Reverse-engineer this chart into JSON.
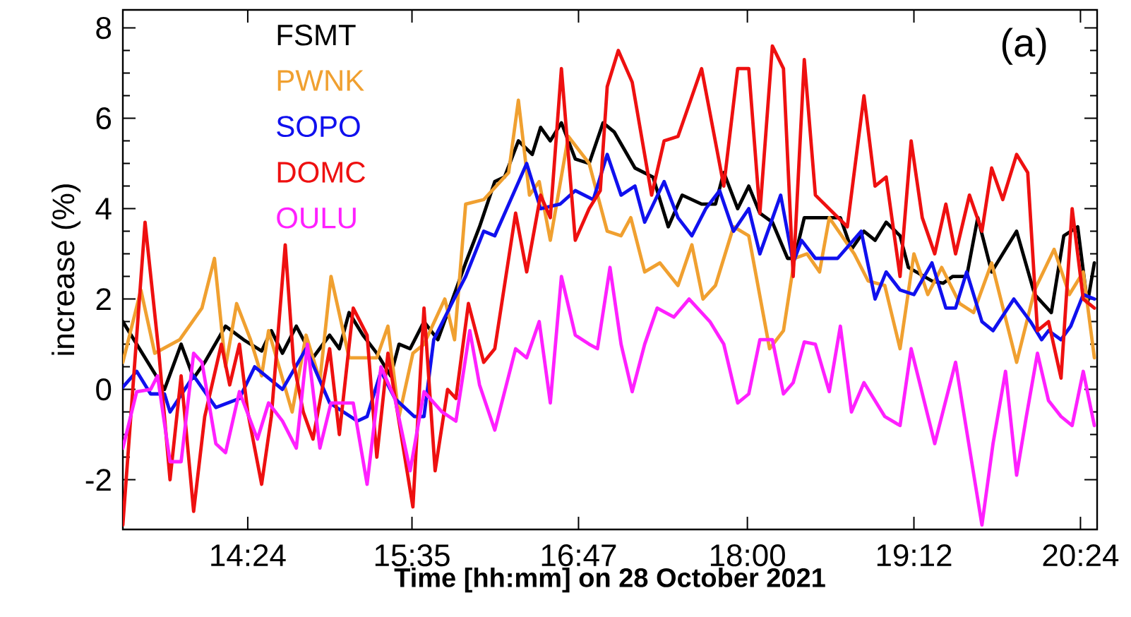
{
  "chart_data": {
    "type": "line",
    "xlabel": "Time [hh:mm] on 28 October 2021",
    "ylabel": "increase (%)",
    "annotations": [
      "(a)"
    ],
    "xlim": [
      13.5,
      20.52
    ],
    "ylim": [
      -3.1,
      8.4
    ],
    "xticks": [
      {
        "value": 14.4,
        "label": "14:24"
      },
      {
        "value": 15.5833,
        "label": "15:35"
      },
      {
        "value": 16.7833,
        "label": "16:47"
      },
      {
        "value": 18.0,
        "label": "18:00"
      },
      {
        "value": 19.2,
        "label": "19:12"
      },
      {
        "value": 20.4,
        "label": "20:24"
      }
    ],
    "yticks": [
      -2,
      0,
      2,
      4,
      6,
      8
    ],
    "grid": false,
    "legend": "top left",
    "marker": "none",
    "line_style": "solid",
    "series": [
      {
        "name": "FSMT",
        "color": "#000000",
        "x": [
          13.5,
          13.8,
          13.92,
          14.01,
          14.09,
          14.24,
          14.37,
          14.5,
          14.57,
          14.65,
          14.75,
          14.87,
          14.99,
          15.06,
          15.13,
          15.23,
          15.33,
          15.43,
          15.49,
          15.57,
          15.67,
          15.77,
          15.97,
          16.07,
          16.18,
          16.25,
          16.35,
          16.45,
          16.51,
          16.58,
          16.66,
          16.76,
          16.86,
          16.96,
          17.04,
          17.19,
          17.32,
          17.43,
          17.53,
          17.67,
          17.77,
          17.83,
          17.93,
          18.01,
          18.09,
          18.18,
          18.29,
          18.34,
          18.41,
          18.67,
          18.75,
          18.84,
          18.92,
          19.0,
          19.1,
          19.16,
          19.33,
          19.41,
          19.48,
          19.58,
          19.66,
          19.76,
          19.84,
          19.94,
          20.07,
          20.19,
          20.28,
          20.38,
          20.45,
          20.5
        ],
        "values": [
          1.5,
          0.0,
          1.0,
          0.25,
          0.6,
          1.4,
          1.1,
          0.85,
          1.3,
          0.8,
          1.4,
          0.7,
          1.2,
          0.9,
          1.7,
          1.2,
          0.8,
          0.3,
          1.0,
          0.9,
          1.5,
          1.1,
          2.8,
          3.6,
          4.6,
          4.7,
          5.5,
          5.2,
          5.8,
          5.5,
          5.9,
          5.1,
          5.0,
          5.9,
          5.7,
          4.9,
          4.7,
          3.6,
          4.3,
          4.1,
          4.1,
          4.8,
          4.0,
          4.5,
          3.9,
          3.7,
          2.9,
          2.9,
          3.8,
          3.8,
          3.1,
          3.5,
          3.3,
          3.7,
          3.4,
          2.7,
          2.4,
          2.35,
          2.5,
          2.5,
          3.8,
          2.6,
          3.0,
          3.5,
          2.1,
          1.7,
          3.4,
          3.6,
          1.9,
          2.8
        ]
      },
      {
        "name": "PWNK",
        "color": "#f0a030",
        "x": [
          13.5,
          13.63,
          13.73,
          13.91,
          14.07,
          14.16,
          14.24,
          14.32,
          14.42,
          14.5,
          14.55,
          14.72,
          14.82,
          14.92,
          15.0,
          15.13,
          15.23,
          15.33,
          15.41,
          15.49,
          15.59,
          15.67,
          15.82,
          15.89,
          15.97,
          16.1,
          16.28,
          16.35,
          16.43,
          16.5,
          16.58,
          16.71,
          16.86,
          16.99,
          17.09,
          17.16,
          17.26,
          17.37,
          17.5,
          17.6,
          17.68,
          17.77,
          17.9,
          18.01,
          18.16,
          18.26,
          18.34,
          18.43,
          18.52,
          18.59,
          18.77,
          18.87,
          18.99,
          19.1,
          19.2,
          19.3,
          19.4,
          19.53,
          19.63,
          19.76,
          19.94,
          20.07,
          20.21,
          20.32,
          20.42,
          20.5
        ],
        "values": [
          0.6,
          2.2,
          0.8,
          1.1,
          1.8,
          2.9,
          0.5,
          1.9,
          1.1,
          0.3,
          1.3,
          -0.5,
          1.2,
          0.2,
          2.5,
          0.7,
          0.7,
          0.7,
          1.4,
          -0.6,
          0.8,
          1.0,
          2.0,
          1.1,
          4.1,
          4.2,
          4.8,
          6.4,
          4.3,
          4.6,
          3.3,
          5.6,
          5.0,
          3.5,
          3.4,
          3.8,
          2.6,
          2.8,
          2.3,
          3.2,
          2.0,
          2.3,
          3.6,
          3.4,
          0.9,
          1.3,
          2.9,
          3.0,
          2.6,
          3.8,
          3.0,
          2.4,
          2.3,
          0.9,
          3.0,
          2.1,
          2.7,
          1.9,
          1.7,
          2.8,
          0.6,
          2.2,
          3.1,
          2.1,
          2.6,
          0.7
        ]
      },
      {
        "name": "SOPO",
        "color": "#1010ee",
        "x": [
          13.5,
          13.6,
          13.7,
          13.8,
          13.84,
          14.01,
          14.17,
          14.34,
          14.45,
          14.65,
          14.82,
          14.99,
          15.19,
          15.26,
          15.36,
          15.46,
          15.6,
          15.67,
          15.74,
          15.87,
          15.97,
          16.1,
          16.18,
          16.41,
          16.51,
          16.65,
          16.76,
          16.89,
          16.99,
          17.09,
          17.19,
          17.26,
          17.4,
          17.5,
          17.6,
          17.7,
          17.8,
          17.9,
          18.01,
          18.09,
          18.24,
          18.33,
          18.39,
          18.49,
          18.65,
          18.82,
          18.92,
          19.0,
          19.1,
          19.2,
          19.33,
          19.43,
          19.5,
          19.58,
          19.69,
          19.77,
          19.92,
          20.04,
          20.12,
          20.17,
          20.26,
          20.33,
          20.42,
          20.5
        ],
        "values": [
          0.05,
          0.4,
          -0.1,
          -0.1,
          -0.5,
          0.3,
          -0.4,
          -0.2,
          0.5,
          0.0,
          0.9,
          -0.3,
          -0.7,
          -0.6,
          0.4,
          -0.2,
          -0.6,
          -0.6,
          1.1,
          1.9,
          2.5,
          3.5,
          3.4,
          5.0,
          4.0,
          4.1,
          4.4,
          4.2,
          5.2,
          4.3,
          4.5,
          3.7,
          4.6,
          3.8,
          3.4,
          4.0,
          4.4,
          3.5,
          4.0,
          3.0,
          4.3,
          2.8,
          3.3,
          2.9,
          2.9,
          3.5,
          2.0,
          2.6,
          2.2,
          2.1,
          2.8,
          1.8,
          1.8,
          2.6,
          1.5,
          1.3,
          2.0,
          1.5,
          1.1,
          1.3,
          1.1,
          1.4,
          2.1,
          2.0
        ]
      },
      {
        "name": "DOMC",
        "color": "#ee1010",
        "x": [
          13.5,
          13.66,
          13.76,
          13.84,
          13.92,
          14.01,
          14.09,
          14.21,
          14.27,
          14.34,
          14.4,
          14.5,
          14.57,
          14.67,
          14.73,
          14.8,
          14.87,
          14.99,
          15.06,
          15.16,
          15.26,
          15.33,
          15.41,
          15.59,
          15.67,
          15.75,
          15.84,
          15.9,
          15.99,
          16.1,
          16.18,
          16.33,
          16.41,
          16.51,
          16.58,
          16.66,
          16.76,
          16.86,
          16.94,
          16.99,
          17.07,
          17.17,
          17.31,
          17.4,
          17.5,
          17.67,
          17.83,
          17.93,
          18.01,
          18.09,
          18.18,
          18.26,
          18.33,
          18.41,
          18.49,
          18.72,
          18.84,
          18.92,
          19.0,
          19.1,
          19.18,
          19.26,
          19.35,
          19.43,
          19.5,
          19.6,
          19.69,
          19.76,
          19.84,
          19.94,
          20.02,
          20.09,
          20.17,
          20.26,
          20.34,
          20.42,
          20.5
        ],
        "values": [
          -3.0,
          3.7,
          0.8,
          -2.0,
          0.3,
          -2.7,
          -0.6,
          1.0,
          0.1,
          1.0,
          -0.5,
          -2.1,
          -0.6,
          3.2,
          0.6,
          -0.5,
          -1.1,
          0.9,
          -1.0,
          1.8,
          1.2,
          -1.5,
          0.8,
          -2.6,
          1.8,
          -1.8,
          0.0,
          -0.2,
          1.9,
          0.6,
          0.9,
          3.9,
          2.6,
          4.3,
          3.8,
          7.1,
          3.3,
          4.0,
          4.4,
          6.7,
          7.5,
          6.8,
          4.3,
          5.5,
          5.6,
          7.1,
          4.5,
          7.1,
          7.1,
          3.9,
          7.6,
          7.1,
          2.5,
          7.3,
          4.3,
          3.6,
          6.5,
          4.5,
          4.7,
          2.5,
          5.5,
          3.8,
          3.0,
          4.1,
          3.0,
          4.3,
          3.5,
          4.9,
          4.2,
          5.2,
          4.8,
          1.3,
          1.5,
          0.25,
          4.0,
          2.0,
          1.8
        ]
      },
      {
        "name": "OULU",
        "color": "#ff20ff",
        "x": [
          13.5,
          13.6,
          13.7,
          13.75,
          13.84,
          13.92,
          14.01,
          14.07,
          14.17,
          14.24,
          14.34,
          14.47,
          14.55,
          14.65,
          14.75,
          14.83,
          14.92,
          15.0,
          15.16,
          15.26,
          15.36,
          15.46,
          15.57,
          15.67,
          15.8,
          15.9,
          16.0,
          16.07,
          16.18,
          16.33,
          16.41,
          16.5,
          16.58,
          16.66,
          16.76,
          16.86,
          16.92,
          17.01,
          17.09,
          17.17,
          17.26,
          17.35,
          17.47,
          17.58,
          17.73,
          17.83,
          17.93,
          18.01,
          18.09,
          18.18,
          18.26,
          18.33,
          18.41,
          18.49,
          18.59,
          18.67,
          18.75,
          18.84,
          18.99,
          19.1,
          19.18,
          19.35,
          19.5,
          19.69,
          19.77,
          19.86,
          19.94,
          20.01,
          20.09,
          20.17,
          20.26,
          20.34,
          20.42,
          20.5
        ],
        "values": [
          -1.3,
          -0.05,
          0.0,
          0.3,
          -1.6,
          -1.6,
          0.8,
          0.6,
          -1.2,
          -1.4,
          -0.05,
          -1.1,
          -0.3,
          -0.7,
          -1.3,
          1.0,
          -1.3,
          -0.3,
          -0.3,
          -2.1,
          0.5,
          -0.2,
          -1.8,
          -0.05,
          -0.5,
          -0.7,
          1.3,
          0.1,
          -0.9,
          0.9,
          0.7,
          1.5,
          -0.3,
          2.5,
          1.2,
          1.0,
          0.9,
          2.7,
          1.0,
          -0.05,
          1.0,
          1.8,
          1.6,
          2.0,
          1.5,
          1.0,
          -0.3,
          -0.1,
          1.1,
          1.1,
          -0.1,
          0.15,
          1.05,
          1.0,
          -0.05,
          1.4,
          -0.5,
          0.15,
          -0.6,
          -0.8,
          0.9,
          -1.2,
          0.6,
          -3.0,
          -1.2,
          0.4,
          -1.9,
          -0.6,
          0.8,
          -0.25,
          -0.6,
          -0.8,
          0.4,
          -0.8
        ]
      }
    ]
  }
}
